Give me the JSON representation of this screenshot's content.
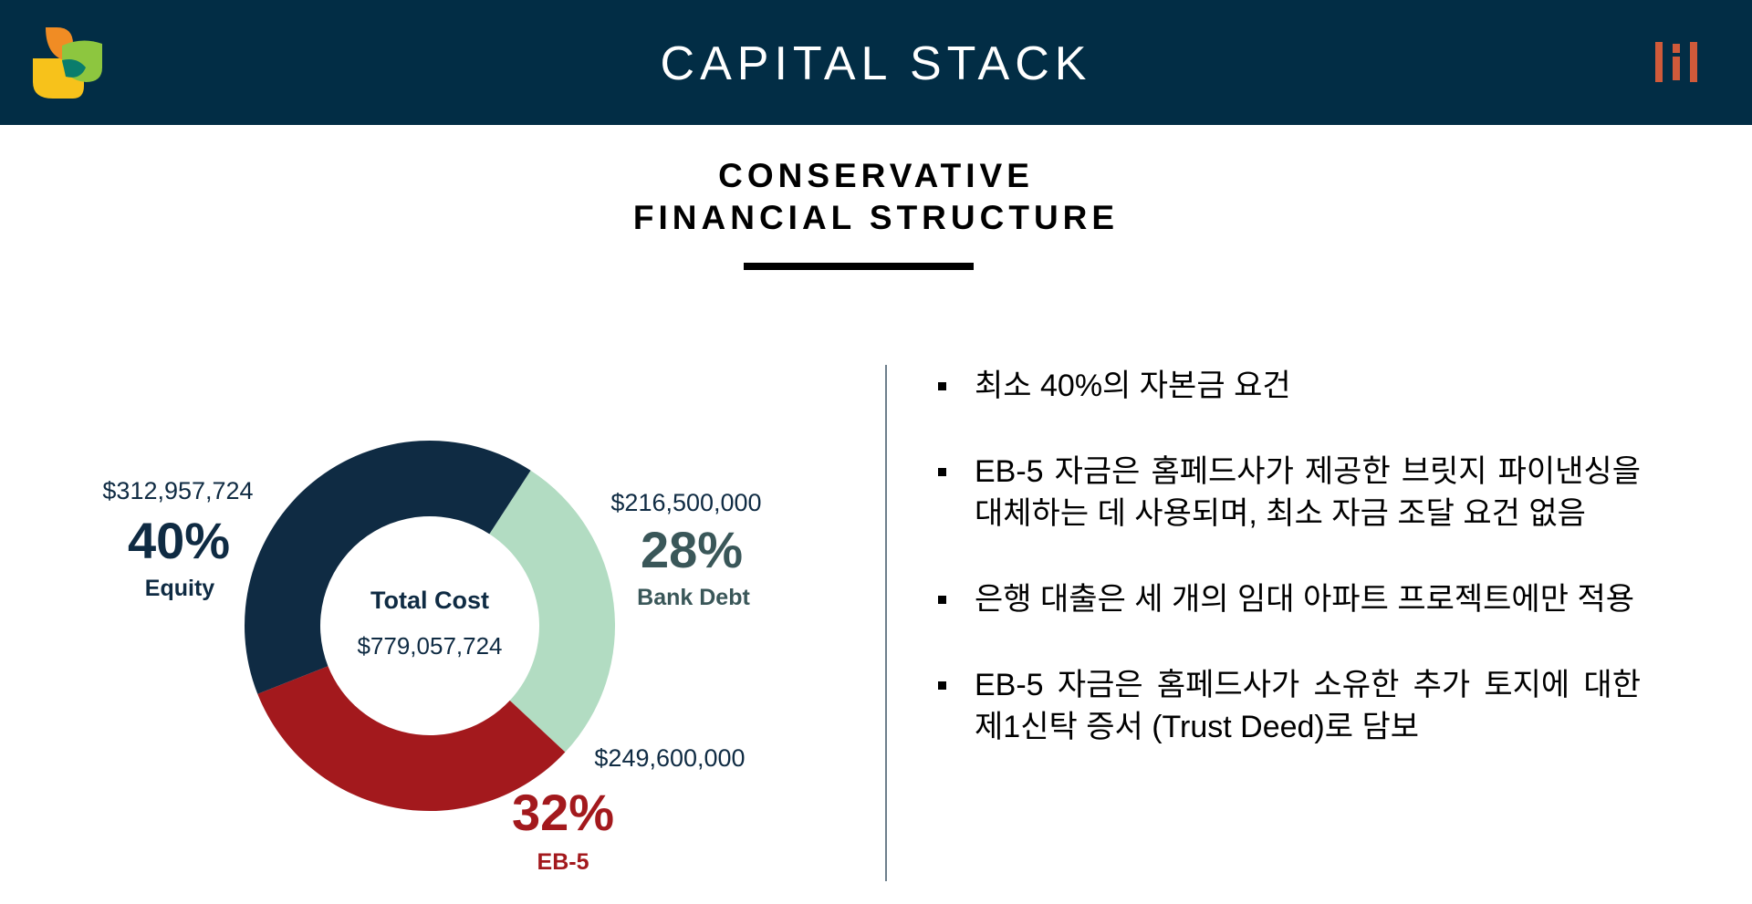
{
  "header": {
    "title": "CAPITAL STACK",
    "logo_left_icon": "leaf-logo-icon",
    "logo_right_icon": "h-monogram-logo-icon",
    "background_color": "#022d45"
  },
  "subtitle": {
    "line1": "CONSERVATIVE",
    "line2": "FINANCIAL STRUCTURE"
  },
  "chart_data": {
    "type": "pie",
    "donut": true,
    "title": "",
    "center_label": "Total Cost",
    "center_value": "$779,057,724",
    "start_angle_deg": 33,
    "slices": [
      {
        "label": "Bank Debt",
        "percent_label": "28%",
        "amount": "$216,500,000",
        "value": 216500000,
        "color": "#b2dcc2",
        "text_color": "#3a5759"
      },
      {
        "label": "EB-5",
        "percent_label": "32%",
        "amount": "$249,600,000",
        "value": 249600000,
        "color": "#a3191d",
        "text_color": "#a3191d"
      },
      {
        "label": "Equity",
        "percent_label": "40%",
        "amount": "$312,957,724",
        "value": 312957724,
        "color": "#0f2b43",
        "text_color": "#0f2b43"
      }
    ]
  },
  "bullets": [
    {
      "text": "최소 40%의 자본금 요건"
    },
    {
      "text": "EB-5 자금은 홈페드사가 제공한 브릿지 파이낸싱을 대체하는 데 사용되며, 최소 자금 조달 요건 없음"
    },
    {
      "text": "은행 대출은 세 개의 임대 아파트 프로젝트에만 적용"
    },
    {
      "text": "EB-5 자금은 홈페드사가 소유한 추가 토지에 대한 제1신탁 증서 (Trust Deed)로 담보"
    }
  ]
}
